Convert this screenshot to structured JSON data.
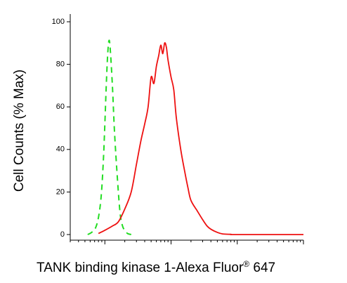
{
  "chart_data": {
    "type": "line",
    "xlabel_main": "TANK binding kinase 1-Alexa Fluor",
    "xlabel_sup": "®",
    "xlabel_tail": " 647",
    "ylabel": "Cell Counts (% Max)",
    "xscale": "log",
    "xlim": [
      0.3,
      1000
    ],
    "ylim": [
      0,
      100
    ],
    "y_ticks": [
      0,
      20,
      40,
      60,
      80,
      100
    ],
    "y_tick_labels": [
      "0",
      "20",
      "40",
      "60",
      "80",
      "100"
    ],
    "x_major_ticks": [
      1,
      10,
      100,
      1000
    ],
    "grid": false,
    "legend": "none",
    "series": [
      {
        "color": "#22dd22",
        "style": "dashed",
        "x": [
          0.55,
          0.63,
          0.72,
          0.8,
          0.88,
          0.95,
          1.0,
          1.05,
          1.1,
          1.15,
          1.2,
          1.3,
          1.4,
          1.55,
          1.7,
          1.85,
          2.0,
          2.2,
          2.5
        ],
        "y": [
          0,
          1,
          3,
          8,
          18,
          35,
          52,
          70,
          84,
          91,
          88,
          70,
          48,
          26,
          10,
          4,
          2,
          0.5,
          0
        ]
      },
      {
        "color": "#ee1111",
        "style": "solid",
        "x": [
          0.8,
          1.0,
          1.3,
          1.6,
          2.0,
          2.5,
          3.0,
          3.5,
          4.0,
          4.5,
          5.0,
          5.5,
          6.0,
          6.5,
          7.0,
          7.5,
          8.0,
          8.5,
          9.0,
          10.0,
          11.0,
          12.0,
          14.0,
          16.0,
          18.0,
          20.0,
          25.0,
          30.0,
          35.0,
          40.0,
          50.0,
          60.0,
          80.0,
          100.0,
          1000.0
        ],
        "y": [
          0.5,
          2,
          4,
          6,
          12,
          20,
          33,
          44,
          52,
          60,
          74,
          71,
          79,
          84,
          89,
          85,
          90,
          88,
          82,
          74,
          68,
          55,
          40,
          30,
          22,
          16,
          11,
          7,
          4,
          2.5,
          1,
          0.3,
          0.1,
          0,
          0
        ]
      }
    ]
  }
}
